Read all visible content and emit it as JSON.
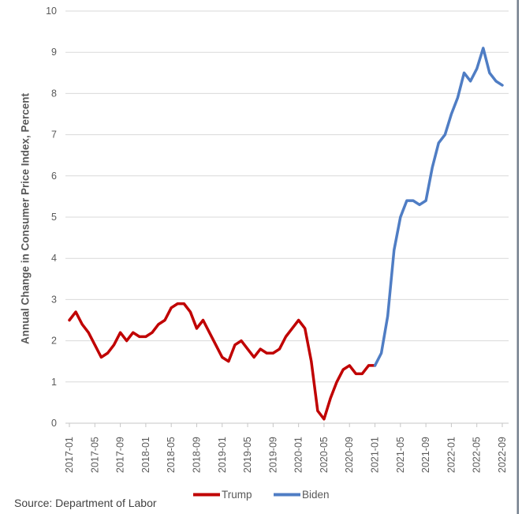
{
  "window": {
    "background": "#ffffff",
    "right_border_color": "#75808e"
  },
  "source_note": "Source: Department of Labor",
  "chart_data": {
    "type": "line",
    "title": "",
    "xlabel": "",
    "ylabel": "Annual Change in Consumer Price Index, Percent",
    "ylim": [
      0,
      10
    ],
    "ytick_interval": 1,
    "ytick_labels": [
      "0",
      "1",
      "2",
      "3",
      "4",
      "5",
      "6",
      "7",
      "8",
      "9",
      "10"
    ],
    "grid": true,
    "legend_position": "bottom",
    "x_start": "2017-01",
    "x_end": "2022-09",
    "xtick_every_months": 4,
    "xtick_labels": [
      "2017-01",
      "2017-05",
      "2017-09",
      "2018-01",
      "2018-05",
      "2018-09",
      "2019-01",
      "2019-05",
      "2019-09",
      "2020-01",
      "2020-05",
      "2020-09",
      "2021-01",
      "2021-05",
      "2021-09",
      "2022-01",
      "2022-05",
      "2022-09"
    ],
    "axis_text_color": "#595959",
    "gridline_color": "#d9d9d9",
    "axis_line_color": "#c6c6c6",
    "series": [
      {
        "name": "Trump",
        "color": "#c00000",
        "start_index": 0,
        "values": [
          2.5,
          2.7,
          2.4,
          2.2,
          1.9,
          1.6,
          1.7,
          1.9,
          2.2,
          2.0,
          2.2,
          2.1,
          2.1,
          2.2,
          2.4,
          2.5,
          2.8,
          2.9,
          2.9,
          2.7,
          2.3,
          2.5,
          2.2,
          1.9,
          1.6,
          1.5,
          1.9,
          2.0,
          1.8,
          1.6,
          1.8,
          1.7,
          1.7,
          1.8,
          2.1,
          2.3,
          2.5,
          2.3,
          1.5,
          0.3,
          0.1,
          0.6,
          1.0,
          1.3,
          1.4,
          1.2,
          1.2,
          1.4,
          1.4
        ]
      },
      {
        "name": "Biden",
        "color": "#4f7dc4",
        "start_index": 48,
        "values": [
          1.4,
          1.7,
          2.6,
          4.2,
          5.0,
          5.4,
          5.4,
          5.3,
          5.4,
          6.2,
          6.8,
          7.0,
          7.5,
          7.9,
          8.5,
          8.3,
          8.6,
          9.1,
          8.5,
          8.3,
          8.2
        ]
      }
    ]
  }
}
